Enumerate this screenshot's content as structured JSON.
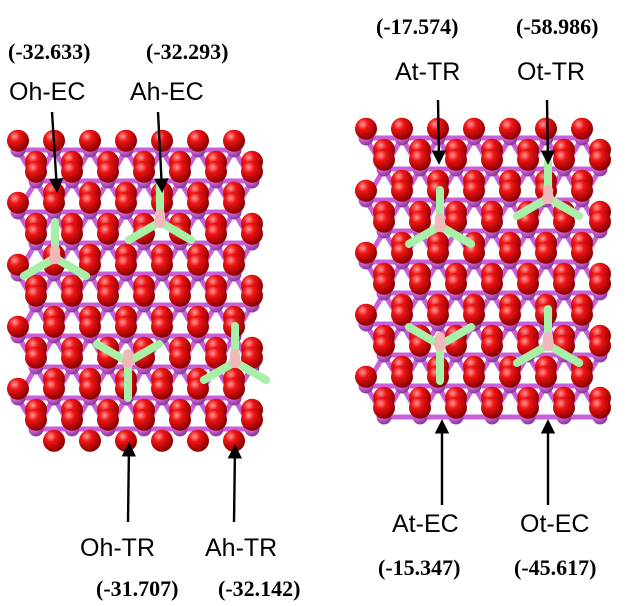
{
  "left_panel": {
    "labels": [
      {
        "name": "Oh-EC",
        "value": "(-32.633)"
      },
      {
        "name": "Ah-EC",
        "value": "(-32.293)"
      },
      {
        "name": "Oh-TR",
        "value": "(-31.707)"
      },
      {
        "name": "Ah-TR",
        "value": "(-32.142)"
      }
    ]
  },
  "right_panel": {
    "labels": [
      {
        "name": "At-TR",
        "value": "(-17.574)"
      },
      {
        "name": "Ot-TR",
        "value": "(-58.986)"
      },
      {
        "name": "At-EC",
        "value": "(-15.347)"
      },
      {
        "name": "Ot-EC",
        "value": "(-45.617)"
      }
    ]
  },
  "colors": {
    "oxygen": "#e00000",
    "cation": "#d068e0",
    "dopant_center": "#f0b8b8",
    "dopant_arm": "#a8f0a8",
    "arrow": "#000000"
  }
}
